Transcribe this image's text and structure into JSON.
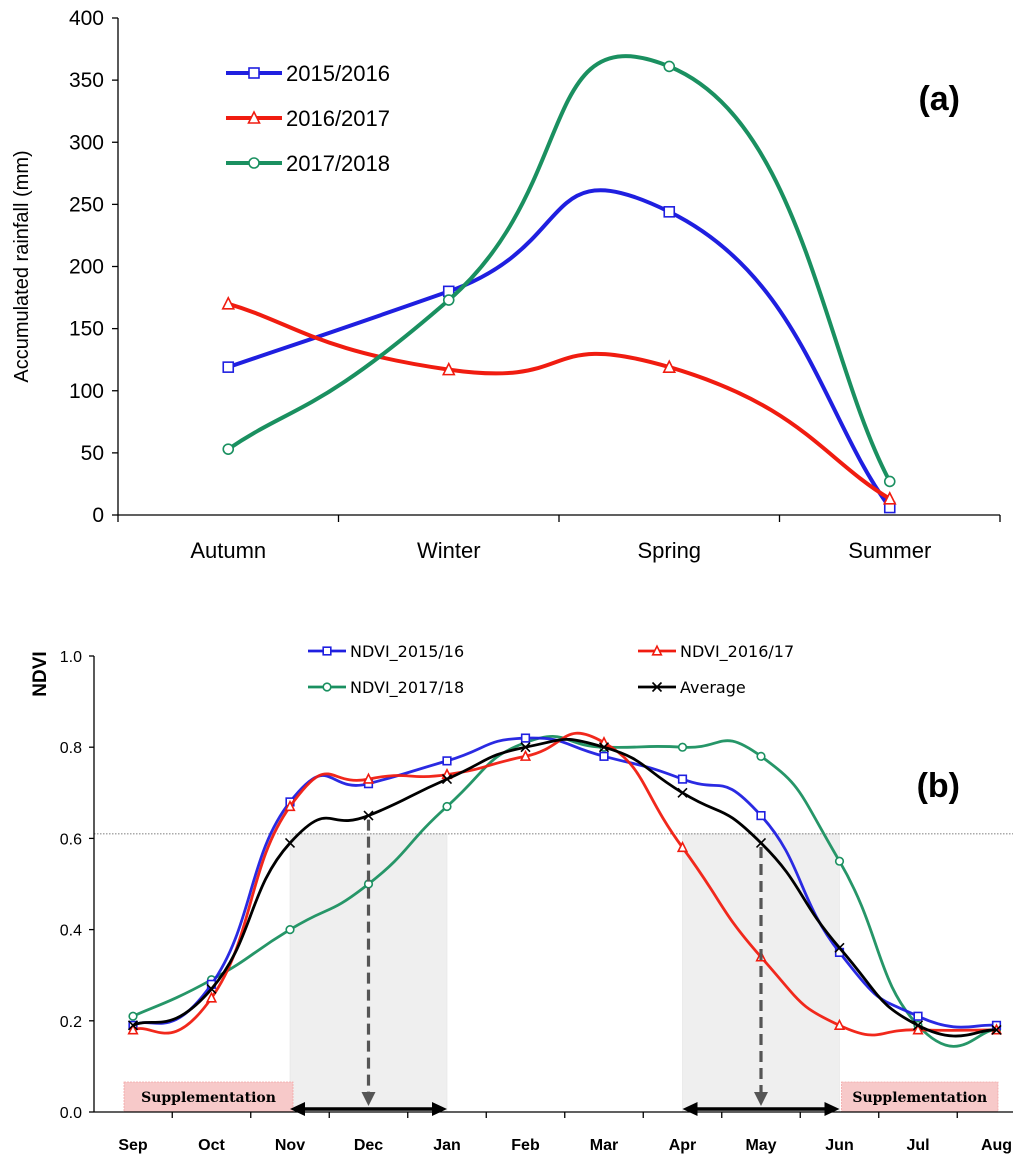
{
  "chart_data": [
    {
      "type": "line",
      "panel_label": "(a)",
      "ylabel": "Accumulated rainfall (mm)",
      "xlabel": "",
      "ylim": [
        0,
        400
      ],
      "yticks": [
        "0",
        "50",
        "100",
        "150",
        "200",
        "250",
        "300",
        "350",
        "400"
      ],
      "categories": [
        "Autumn",
        "Winter",
        "Spring",
        "Summer"
      ],
      "legend_position": "top-left",
      "series": [
        {
          "name": "2015/2016",
          "color": "#1f1fe0",
          "marker": "square",
          "values": [
            119,
            180,
            244,
            6
          ]
        },
        {
          "name": "2016/2017",
          "color": "#f01c10",
          "marker": "triangle",
          "values": [
            170,
            117,
            119,
            13
          ]
        },
        {
          "name": "2017/2018",
          "color": "#1a9060",
          "marker": "circle",
          "values": [
            53,
            173,
            361,
            27
          ]
        }
      ]
    },
    {
      "type": "line",
      "panel_label": "(b)",
      "ylabel": "NDVI",
      "xlabel": "",
      "ylim": [
        0,
        1.0
      ],
      "yticks": [
        "0.0",
        "0.2",
        "0.4",
        "0.6",
        "0.8",
        "1.0"
      ],
      "categories": [
        "Sep",
        "Oct",
        "Nov",
        "Dec",
        "Jan",
        "Feb",
        "Mar",
        "Apr",
        "May",
        "Jun",
        "Jul",
        "Aug"
      ],
      "legend_position": "top",
      "threshold_line": 0.61,
      "shaded_periods": [
        {
          "from": "Nov",
          "to": "Jan",
          "upper": 0.61,
          "arrow_at": "Dec"
        },
        {
          "from": "Apr",
          "to": "Jun",
          "upper": 0.61,
          "arrow_at": "May"
        }
      ],
      "supplementation_periods": [
        {
          "label": "Supplementation",
          "from": "Sep",
          "to": "Nov"
        },
        {
          "label": "Supplementation",
          "from": "Jun",
          "to": "Aug"
        }
      ],
      "series": [
        {
          "name": "NDVI_2015/16",
          "color": "#1f1fe0",
          "marker": "square",
          "values": [
            0.19,
            0.28,
            0.68,
            0.72,
            0.77,
            0.82,
            0.78,
            0.73,
            0.65,
            0.35,
            0.21,
            0.19
          ]
        },
        {
          "name": "NDVI_2016/17",
          "color": "#f01c10",
          "marker": "triangle",
          "values": [
            0.18,
            0.25,
            0.67,
            0.73,
            0.74,
            0.78,
            0.81,
            0.58,
            0.34,
            0.19,
            0.18,
            0.18
          ]
        },
        {
          "name": "NDVI_2017/18",
          "color": "#1a9060",
          "marker": "circle",
          "values": [
            0.21,
            0.29,
            0.4,
            0.5,
            0.67,
            0.81,
            0.8,
            0.8,
            0.78,
            0.55,
            0.19,
            0.18
          ]
        },
        {
          "name": "Average",
          "color": "#000000",
          "marker": "x",
          "values": [
            0.19,
            0.27,
            0.59,
            0.65,
            0.73,
            0.8,
            0.8,
            0.7,
            0.59,
            0.36,
            0.19,
            0.18
          ]
        }
      ]
    }
  ]
}
